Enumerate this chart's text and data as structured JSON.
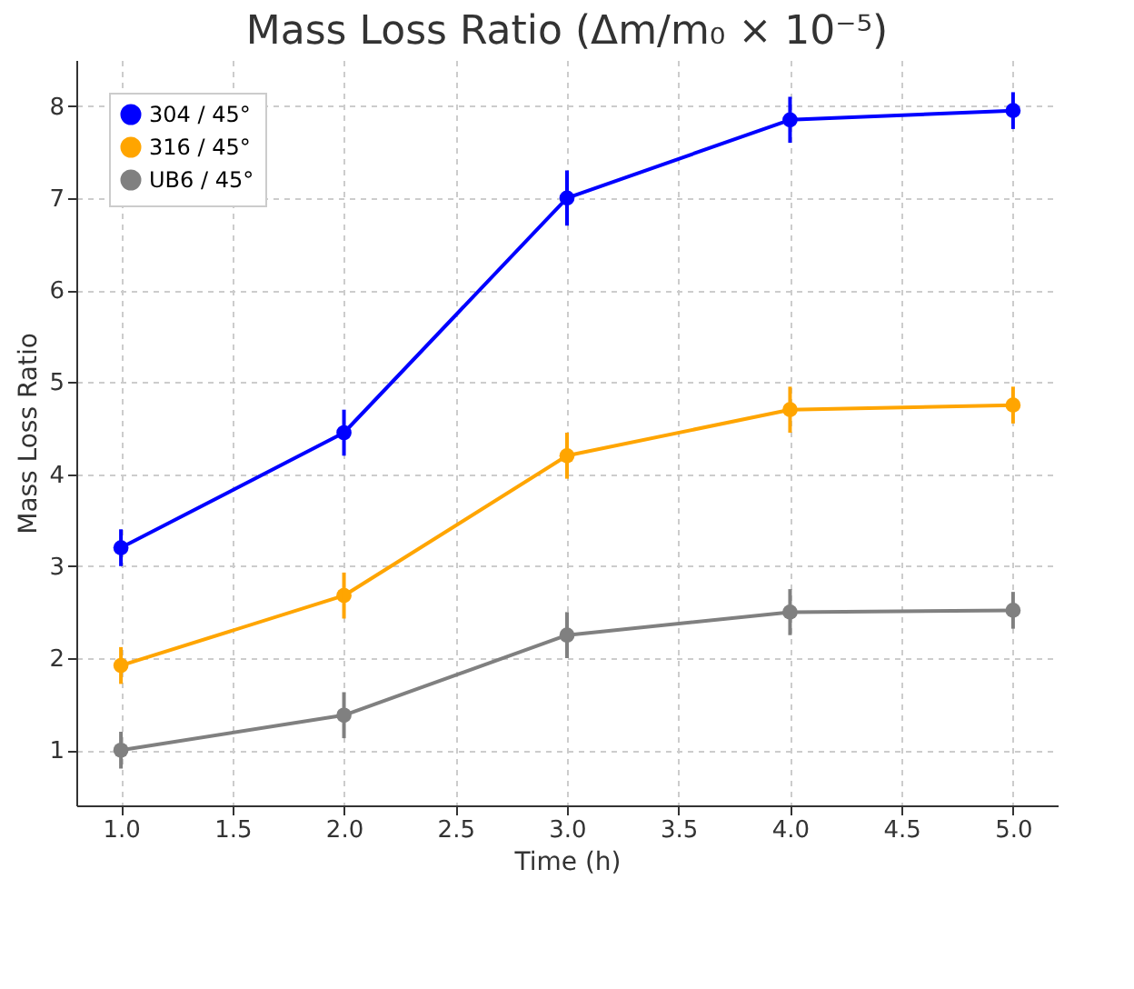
{
  "chart_data": {
    "type": "line",
    "title": "Mass Loss Ratio (Δm/m₀ × 10⁻⁵)",
    "xlabel": "Time (h)",
    "ylabel": "Mass Loss Ratio",
    "x": [
      1,
      2,
      3,
      4,
      5
    ],
    "series": [
      {
        "name": "304 / 45°",
        "color": "#0000ff",
        "values": [
          3.2,
          4.45,
          7.0,
          7.85,
          7.95
        ],
        "errors": [
          0.2,
          0.25,
          0.3,
          0.25,
          0.2
        ]
      },
      {
        "name": "316 / 45°",
        "color": "#ffa500",
        "values": [
          1.92,
          2.68,
          4.2,
          4.7,
          4.75
        ],
        "errors": [
          0.2,
          0.25,
          0.25,
          0.25,
          0.2
        ]
      },
      {
        "name": "UB6 / 45°",
        "color": "#808080",
        "values": [
          1.0,
          1.38,
          2.25,
          2.5,
          2.52
        ],
        "errors": [
          0.2,
          0.25,
          0.25,
          0.25,
          0.2
        ]
      }
    ],
    "xlim": [
      0.8,
      5.2
    ],
    "ylim": [
      0.4,
      8.5
    ],
    "xticks": [
      {
        "value": 1,
        "label": "1.0"
      },
      {
        "value": 1.5,
        "label": "1.5"
      },
      {
        "value": 2,
        "label": "2.0"
      },
      {
        "value": 2.5,
        "label": "2.5"
      },
      {
        "value": 3,
        "label": "3.0"
      },
      {
        "value": 3.5,
        "label": "3.5"
      },
      {
        "value": 4,
        "label": "4.0"
      },
      {
        "value": 4.5,
        "label": "4.5"
      },
      {
        "value": 5,
        "label": "5.0"
      }
    ],
    "yticks": [
      1,
      2,
      3,
      4,
      5,
      6,
      7,
      8
    ],
    "grid": true,
    "legend": "top left",
    "marker": "circle",
    "line_style": "solid"
  }
}
